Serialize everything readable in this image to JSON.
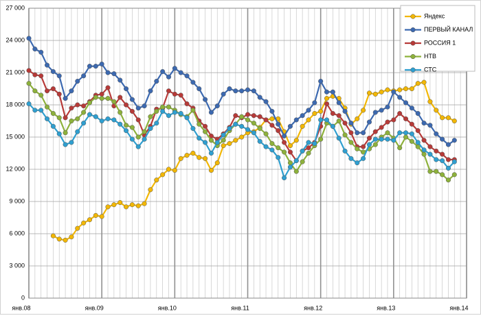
{
  "chart_data": {
    "type": "line",
    "x": [
      0,
      1,
      2,
      3,
      4,
      5,
      6,
      7,
      8,
      9,
      10,
      11,
      12,
      13,
      14,
      15,
      16,
      17,
      18,
      19,
      20,
      21,
      22,
      23,
      24,
      25,
      26,
      27,
      28,
      29,
      30,
      31,
      32,
      33,
      34,
      35,
      36,
      37,
      38,
      39,
      40,
      41,
      42,
      43,
      44,
      45,
      46,
      47,
      48,
      49,
      50,
      51,
      52,
      53,
      54,
      55,
      56,
      57,
      58,
      59,
      60,
      61,
      62,
      63,
      64,
      65,
      66,
      67,
      68,
      69,
      70
    ],
    "xlim": [
      0,
      72
    ],
    "xticks": [
      {
        "value": 0,
        "label": "янв.08"
      },
      {
        "value": 12,
        "label": "янв.09"
      },
      {
        "value": 24,
        "label": "янв.10"
      },
      {
        "value": 36,
        "label": "янв.11"
      },
      {
        "value": 48,
        "label": "янв.12"
      },
      {
        "value": 60,
        "label": "янв.13"
      },
      {
        "value": 72,
        "label": "янв.14"
      }
    ],
    "ylim": [
      0,
      27000
    ],
    "yticks": [
      0,
      {
        "value": 3000,
        "label": "3 000"
      },
      {
        "value": 6000,
        "label": "6 000"
      },
      {
        "value": 9000,
        "label": "9 000"
      },
      {
        "value": 12000,
        "label": "12 000"
      },
      {
        "value": 15000,
        "label": "15 000"
      },
      {
        "value": 18000,
        "label": "18 000"
      },
      {
        "value": 21000,
        "label": "21 000"
      },
      {
        "value": 24000,
        "label": "24 000"
      },
      {
        "value": 27000,
        "label": "27 000"
      }
    ],
    "grid": true,
    "legend": "top-right",
    "series": [
      {
        "name": "Яндекс",
        "color": "#f2b705",
        "values": [
          null,
          null,
          null,
          null,
          5800,
          5500,
          5400,
          5700,
          6500,
          7000,
          7300,
          7700,
          7600,
          8500,
          8700,
          8900,
          8500,
          8700,
          8600,
          8800,
          10100,
          11000,
          11500,
          12000,
          11900,
          13000,
          13300,
          13500,
          13100,
          13000,
          11900,
          12600,
          14200,
          14400,
          14700,
          15000,
          15400,
          15500,
          15900,
          16600,
          16700,
          16700,
          15500,
          14200,
          14700,
          16000,
          16600,
          17200,
          17400,
          18600,
          18800,
          18600,
          17700,
          16200,
          16700,
          17500,
          19100,
          19000,
          19200,
          19400,
          19300,
          19400,
          19500,
          19500,
          20000,
          20100,
          18300,
          17500,
          16800,
          16800,
          16500
        ]
      },
      {
        "name": "ПЕРВЫЙ КАНАЛ",
        "color": "#3c69b0",
        "values": [
          24200,
          23200,
          22900,
          21700,
          21100,
          20700,
          18600,
          19300,
          20200,
          20700,
          21600,
          21600,
          21800,
          21000,
          20900,
          20300,
          19500,
          18500,
          17700,
          17900,
          19300,
          20200,
          21100,
          20600,
          21400,
          21000,
          20700,
          20100,
          19500,
          18500,
          17300,
          17900,
          19000,
          19500,
          19300,
          19300,
          19400,
          19300,
          18700,
          18300,
          17400,
          16200,
          15100,
          16000,
          16600,
          17000,
          17500,
          18200,
          20200,
          19200,
          19200,
          18200,
          17400,
          16300,
          15400,
          15400,
          16400,
          17300,
          17500,
          17800,
          19200,
          18700,
          18200,
          17700,
          17200,
          16300,
          16100,
          15300,
          14800,
          14300,
          14700
        ]
      },
      {
        "name": "РОССИЯ 1",
        "color": "#b73a38",
        "values": [
          21200,
          20800,
          20700,
          19300,
          19500,
          19000,
          16800,
          17700,
          18000,
          17900,
          18300,
          18900,
          19000,
          19600,
          17900,
          18700,
          18000,
          17400,
          16600,
          15200,
          16000,
          17600,
          17700,
          19300,
          19000,
          18900,
          18100,
          17700,
          16500,
          16000,
          15100,
          14800,
          15300,
          15900,
          17000,
          16800,
          17100,
          17000,
          16900,
          16600,
          16100,
          15600,
          14500,
          13600,
          12800,
          13700,
          14000,
          14500,
          16000,
          18100,
          17200,
          17000,
          16300,
          15400,
          14100,
          14100,
          14900,
          15500,
          15900,
          16400,
          16600,
          17200,
          16700,
          16200,
          15600,
          14700,
          14100,
          13700,
          13400,
          12900,
          12900
        ]
      },
      {
        "name": "НТВ",
        "color": "#8db13b",
        "values": [
          20000,
          19300,
          18900,
          17800,
          17200,
          16800,
          15400,
          16500,
          16700,
          17300,
          18200,
          18700,
          18600,
          18600,
          18300,
          17300,
          16100,
          15900,
          15000,
          15500,
          16900,
          17400,
          17800,
          17800,
          17500,
          17100,
          16900,
          17500,
          16200,
          15500,
          14700,
          14200,
          14700,
          15600,
          16200,
          16900,
          16600,
          16300,
          15800,
          15300,
          14400,
          14000,
          13600,
          12600,
          11800,
          12700,
          13500,
          14200,
          14800,
          16300,
          16000,
          16500,
          15200,
          14500,
          13900,
          13600,
          13900,
          14300,
          15000,
          15400,
          14900,
          14000,
          15000,
          14600,
          14100,
          13400,
          11800,
          11800,
          11500,
          11000,
          11500
        ]
      },
      {
        "name": "СТС",
        "color": "#2f9fd0",
        "values": [
          18100,
          17500,
          17500,
          16700,
          16000,
          15300,
          14300,
          14500,
          15500,
          16300,
          17100,
          16900,
          16500,
          16700,
          16600,
          16200,
          15600,
          14800,
          14100,
          14800,
          15800,
          16300,
          17400,
          17000,
          17300,
          17200,
          16800,
          15800,
          14900,
          14500,
          13500,
          14500,
          15200,
          15800,
          16200,
          16000,
          15700,
          15400,
          14600,
          14100,
          13800,
          13100,
          11200,
          12200,
          12800,
          13700,
          14500,
          14400,
          16600,
          16600,
          16000,
          14900,
          13700,
          13000,
          12600,
          13000,
          14300,
          14800,
          14800,
          14800,
          14700,
          15400,
          15400,
          15300,
          14500,
          13800,
          13400,
          12900,
          12800,
          12100,
          12700
        ]
      }
    ]
  }
}
